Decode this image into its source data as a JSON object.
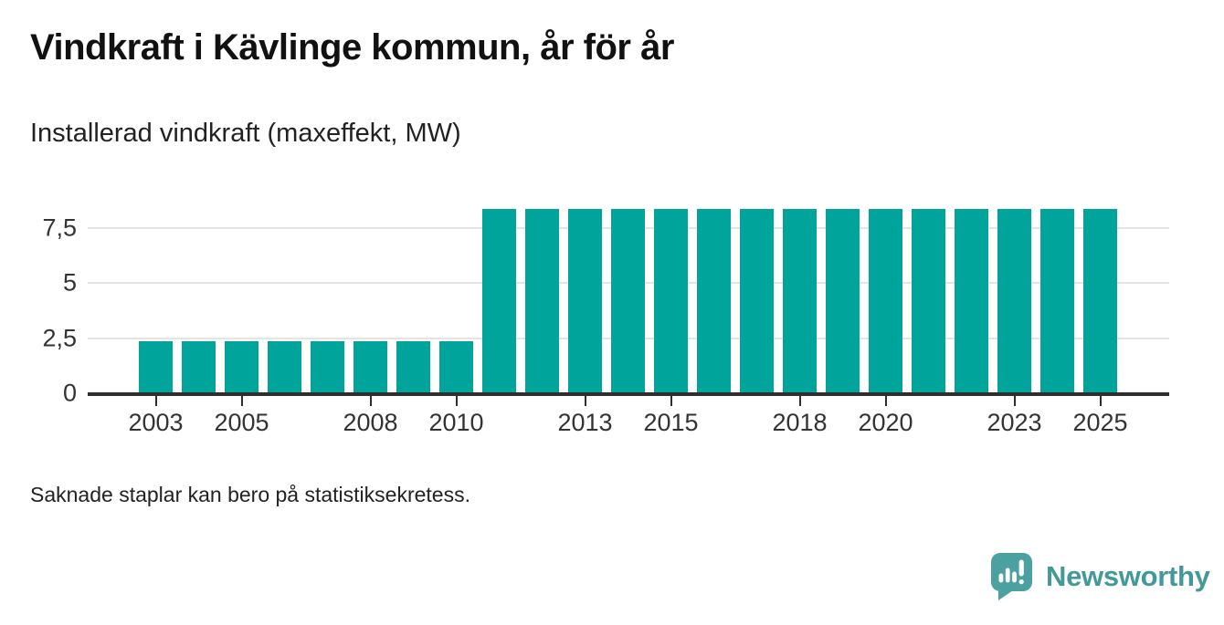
{
  "header": {
    "title": "Vindkraft i Kävlinge kommun, år för år",
    "subtitle": "Installerad vindkraft (maxeffekt, MW)"
  },
  "footer": {
    "note": "Saknade staplar kan bero på statistiksekretess."
  },
  "brand": {
    "name": "Newsworthy",
    "icon": "speech-bubble-bar-chart-icon",
    "color": "#43999a",
    "icon_color": "#4ba1a0"
  },
  "colors": {
    "bar": "#00a49a",
    "gridline": "#e4e4e4",
    "axis": "#2e2e2e",
    "text_dark": "#111111",
    "text_body": "#222222",
    "tick_text": "#333333"
  },
  "chart_data": {
    "type": "bar",
    "title": "Vindkraft i Kävlinge kommun, år för år",
    "subtitle": "Installerad vindkraft (maxeffekt, MW)",
    "unit": "MW",
    "x": [
      2003,
      2004,
      2005,
      2006,
      2007,
      2008,
      2009,
      2010,
      2011,
      2012,
      2013,
      2014,
      2015,
      2016,
      2017,
      2018,
      2019,
      2020,
      2021,
      2022,
      2023,
      2024,
      2025
    ],
    "values": [
      2.3,
      2.3,
      2.3,
      2.3,
      2.3,
      2.3,
      2.3,
      2.3,
      8.3,
      8.3,
      8.3,
      8.3,
      8.3,
      8.3,
      8.3,
      8.3,
      8.3,
      8.3,
      8.3,
      8.3,
      8.3,
      8.3,
      8.3
    ],
    "ylim": [
      0,
      8.6
    ],
    "yticks": [
      0,
      2.5,
      5,
      7.5
    ],
    "ytick_labels": [
      "0",
      "2,5",
      "5",
      "7,5"
    ],
    "xticks": [
      2003,
      2005,
      2008,
      2010,
      2013,
      2015,
      2018,
      2020,
      2023,
      2025
    ],
    "xtick_labels": [
      "2003",
      "2005",
      "2008",
      "2010",
      "2013",
      "2015",
      "2018",
      "2020",
      "2023",
      "2025"
    ],
    "grid": true,
    "legend": "none",
    "bar_color": "#00a49a",
    "note": "Saknade staplar kan bero på statistiksekretess."
  }
}
